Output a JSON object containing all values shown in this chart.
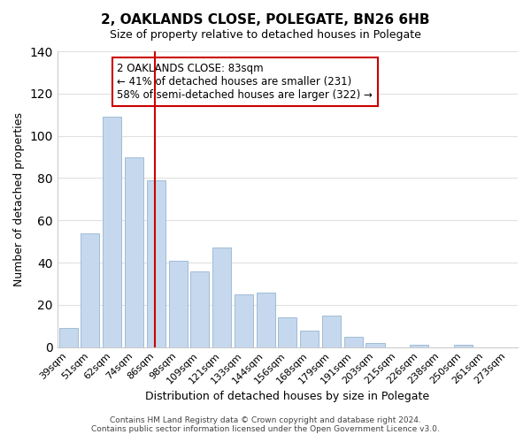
{
  "title": "2, OAKLANDS CLOSE, POLEGATE, BN26 6HB",
  "subtitle": "Size of property relative to detached houses in Polegate",
  "xlabel": "Distribution of detached houses by size in Polegate",
  "ylabel": "Number of detached properties",
  "bar_labels": [
    "39sqm",
    "51sqm",
    "62sqm",
    "74sqm",
    "86sqm",
    "98sqm",
    "109sqm",
    "121sqm",
    "133sqm",
    "144sqm",
    "156sqm",
    "168sqm",
    "179sqm",
    "191sqm",
    "203sqm",
    "215sqm",
    "226sqm",
    "238sqm",
    "250sqm",
    "261sqm",
    "273sqm"
  ],
  "bar_values": [
    9,
    54,
    109,
    90,
    79,
    41,
    36,
    47,
    25,
    26,
    14,
    8,
    15,
    5,
    2,
    0,
    1,
    0,
    1,
    0,
    0
  ],
  "bar_color": "#c5d8ed",
  "bar_edge_color": "#a0bcd8",
  "vline_color": "#cc0000",
  "ylim": [
    0,
    140
  ],
  "yticks": [
    0,
    20,
    40,
    60,
    80,
    100,
    120,
    140
  ],
  "annotation_title": "2 OAKLANDS CLOSE: 83sqm",
  "annotation_line1": "← 41% of detached houses are smaller (231)",
  "annotation_line2": "58% of semi-detached houses are larger (322) →",
  "annotation_box_color": "#ffffff",
  "annotation_box_edge": "#cc0000",
  "footer1": "Contains HM Land Registry data © Crown copyright and database right 2024.",
  "footer2": "Contains public sector information licensed under the Open Government Licence v3.0.",
  "background_color": "#ffffff",
  "grid_color": "#e0e0e0"
}
